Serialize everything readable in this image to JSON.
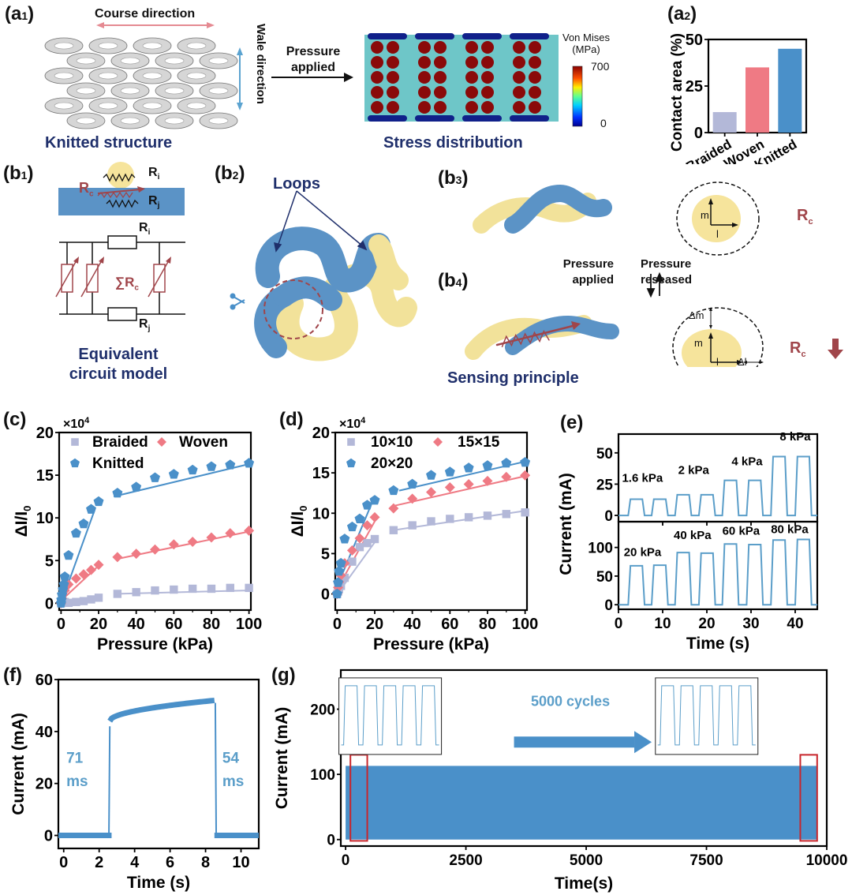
{
  "colors": {
    "navy": "#1f2f6b",
    "blue": "#4a90c9",
    "blue_dark": "#3a7fb8",
    "pink": "#ef7a84",
    "lavender": "#b3b8d8",
    "brick": "#a0454a",
    "yellow": "#f6e49c",
    "grey": "#c8c8c8",
    "red_box": "#c8262c"
  },
  "panel_a1": {
    "label_main": "(a",
    "label_sub": "1",
    "label_end": ")",
    "course_direction": "Course direction",
    "wale_direction": "Wale direction",
    "arrow_text_1": "Pressure",
    "arrow_text_2": "applied",
    "left_caption": "Knitted structure",
    "right_caption": "Stress distribution",
    "colorbar_title_1": "Von Mises",
    "colorbar_title_2": "(MPa)",
    "colorbar_max": "700",
    "colorbar_min": "0"
  },
  "panel_b1": {
    "label_main": "(b",
    "label_sub": "1",
    "label_end": ")",
    "rc": "R",
    "rc_sub": "c",
    "ri": "R",
    "ri_sub": "i",
    "rj": "R",
    "rj_sub": "j",
    "sum_rc": "∑R",
    "sum_rc_sub": "c",
    "caption_1": "Equivalent",
    "caption_2": "circuit model"
  },
  "panel_b2": {
    "label_main": "(b",
    "label_sub": "2",
    "label_end": ")",
    "loops": "Loops",
    "scissors_icon": "scissors-icon"
  },
  "panel_b3": {
    "label_main": "(b",
    "label_sub": "3",
    "label_end": ")",
    "m": "m",
    "l": "l",
    "rc": "R",
    "rc_sub": "c"
  },
  "panel_b4": {
    "label_main": "(b",
    "label_sub": "4",
    "label_end": ")",
    "pressure_applied_1": "Pressure",
    "pressure_applied_2": "applied",
    "pressure_released_1": "Pressure",
    "pressure_released_2": "reseased",
    "dm": "Δm",
    "m": "m",
    "l": "l",
    "dl": "Δl",
    "rc": "R",
    "rc_sub": "c",
    "caption": "Sensing principle"
  },
  "chart_data": [
    {
      "id": "a2",
      "panel_label": "(a",
      "panel_sub": "2",
      "panel_end": ")",
      "type": "bar",
      "categories": [
        "Braided",
        "Woven",
        "Knitted"
      ],
      "values": [
        11,
        35,
        45
      ],
      "colors": [
        "#b3b8d8",
        "#ef7a84",
        "#4a90c9"
      ],
      "ylabel": "Contact area (%)",
      "ylim": [
        0,
        50
      ],
      "yticks": [
        "0",
        "25",
        "50"
      ]
    },
    {
      "id": "c",
      "panel_label": "(c)",
      "type": "scatter",
      "multiplier": "×10",
      "multiplier_exp": "4",
      "xlabel": "Pressure (kPa)",
      "ylabel": "ΔI/I",
      "ylabel_sub": "0",
      "xlim": [
        -1,
        101
      ],
      "ylim": [
        -0.8,
        20
      ],
      "xticks": [
        "0",
        "20",
        "40",
        "60",
        "80",
        "100"
      ],
      "yticks": [
        "0",
        "5",
        "10",
        "15",
        "20"
      ],
      "legend": [
        "Braided",
        "Woven",
        "Knitted"
      ],
      "series": [
        {
          "name": "Braided",
          "marker": "square",
          "color": "#b3b8d8",
          "x": [
            0,
            0.5,
            1,
            2,
            4,
            8,
            12,
            16,
            20,
            30,
            40,
            50,
            60,
            70,
            80,
            90,
            100
          ],
          "y": [
            0,
            0.05,
            0.1,
            0.15,
            0.05,
            0.15,
            0.25,
            0.45,
            0.65,
            1.1,
            1.3,
            1.5,
            1.6,
            1.7,
            1.7,
            1.8,
            1.8
          ],
          "fit": [
            [
              [
                0,
                0
              ],
              [
                20,
                0.6
              ]
            ],
            [
              [
                28,
                1.1
              ],
              [
                100,
                1.5
              ]
            ]
          ]
        },
        {
          "name": "Woven",
          "marker": "diamond",
          "color": "#ef7a84",
          "x": [
            0,
            0.5,
            1,
            2,
            4,
            8,
            12,
            16,
            20,
            30,
            40,
            50,
            60,
            70,
            80,
            90,
            100
          ],
          "y": [
            0,
            0.6,
            1.0,
            1.5,
            2.2,
            2.9,
            3.4,
            3.9,
            4.5,
            5.4,
            5.8,
            6.3,
            6.9,
            7.2,
            7.7,
            8.2,
            8.5
          ],
          "fit": [
            [
              [
                0,
                0.3
              ],
              [
                20,
                4.4
              ]
            ],
            [
              [
                30,
                5.2
              ],
              [
                100,
                8.4
              ]
            ]
          ]
        },
        {
          "name": "Knitted",
          "marker": "pentagon",
          "color": "#4a90c9",
          "x": [
            0,
            0.2,
            0.5,
            1,
            1.5,
            2,
            4,
            8,
            12,
            16,
            20,
            30,
            40,
            50,
            60,
            70,
            80,
            90,
            100
          ],
          "y": [
            0,
            0.4,
            1.0,
            1.6,
            2.2,
            3.1,
            5.6,
            8.2,
            9.3,
            11.0,
            11.9,
            12.9,
            13.6,
            14.7,
            15.1,
            15.6,
            16.0,
            16.2,
            16.4
          ],
          "fit": [
            [
              [
                0,
                0
              ],
              [
                18,
                11.0
              ]
            ],
            [
              [
                28,
                12.5
              ],
              [
                100,
                16.3
              ]
            ]
          ]
        }
      ]
    },
    {
      "id": "d",
      "panel_label": "(d)",
      "type": "scatter",
      "multiplier": "×10",
      "multiplier_exp": "4",
      "xlabel": "Pressure (kPa)",
      "ylabel": "ΔI/I",
      "ylabel_sub": "0",
      "xlim": [
        -1,
        101
      ],
      "ylim": [
        -2,
        20
      ],
      "xticks": [
        "0",
        "20",
        "40",
        "60",
        "80",
        "100"
      ],
      "yticks": [
        "0",
        "5",
        "10",
        "15",
        "20"
      ],
      "legend": [
        "10×10",
        "15×15",
        "20×20"
      ],
      "series": [
        {
          "name": "10×10",
          "marker": "square",
          "color": "#b3b8d8",
          "x": [
            0,
            0.5,
            1,
            2,
            4,
            8,
            12,
            16,
            20,
            30,
            40,
            50,
            60,
            70,
            80,
            90,
            100
          ],
          "y": [
            0,
            0.3,
            0.6,
            1.0,
            2.0,
            4.0,
            5.8,
            6.3,
            6.8,
            7.9,
            8.5,
            9.0,
            9.3,
            9.5,
            9.7,
            9.9,
            10.1
          ],
          "fit": [
            [
              [
                2,
                0.6
              ],
              [
                20,
                6.4
              ]
            ],
            [
              [
                30,
                7.9
              ],
              [
                100,
                10.3
              ]
            ]
          ]
        },
        {
          "name": "15×15",
          "marker": "diamond",
          "color": "#ef7a84",
          "x": [
            0,
            0.5,
            1,
            2,
            4,
            8,
            12,
            16,
            20,
            30,
            40,
            50,
            60,
            70,
            80,
            90,
            100
          ],
          "y": [
            0,
            0.8,
            1.5,
            2.3,
            3.8,
            5.4,
            6.9,
            8.5,
            9.5,
            10.6,
            11.8,
            12.6,
            13.2,
            13.6,
            14.0,
            14.5,
            14.7
          ],
          "fit": [
            [
              [
                1,
                1.0
              ],
              [
                20,
                9.0
              ]
            ],
            [
              [
                30,
                10.9
              ],
              [
                100,
                14.6
              ]
            ]
          ]
        },
        {
          "name": "20×20",
          "marker": "pentagon",
          "color": "#4a90c9",
          "x": [
            0,
            0.5,
            1,
            2,
            4,
            8,
            12,
            16,
            20,
            30,
            40,
            50,
            60,
            70,
            80,
            90,
            100
          ],
          "y": [
            0,
            1.4,
            2.8,
            3.8,
            6.8,
            8.3,
            9.3,
            11.0,
            11.6,
            12.8,
            13.6,
            14.7,
            15.1,
            15.6,
            15.9,
            16.2,
            16.3
          ],
          "fit": [
            [
              [
                1,
                1.5
              ],
              [
                18,
                11.0
              ]
            ],
            [
              [
                33,
                12.8
              ],
              [
                100,
                16.4
              ]
            ]
          ]
        }
      ]
    },
    {
      "id": "e",
      "panel_label": "(e)",
      "type": "line",
      "xlabel": "Time (s)",
      "ylabel": "Current (mA)",
      "xlim": [
        0,
        45
      ],
      "xticks": [
        "0",
        "10",
        "20",
        "30",
        "40"
      ],
      "top": {
        "ylim": [
          -5,
          65
        ],
        "yticks": [
          "0",
          "25",
          "50"
        ],
        "levels": [
          13,
          13,
          16.5,
          16.5,
          28,
          28,
          47,
          47
        ],
        "annotations": [
          "1.6 kPa",
          "2 kPa",
          "4 kPa",
          "8 kPa"
        ]
      },
      "bottom": {
        "ylim": [
          -8,
          145
        ],
        "yticks": [
          "0",
          "50",
          "100"
        ],
        "levels": [
          68,
          69,
          91,
          90,
          106,
          105,
          113,
          114
        ],
        "annotations": [
          "20 kPa",
          "40 kPa",
          "60 kPa",
          "80 kPa"
        ]
      },
      "pulse_starts": [
        2.2,
        7.5,
        12.8,
        18.2,
        23.5,
        29.0,
        34.5,
        40.0
      ],
      "pulse_width": 3.2,
      "color": "#5b9ec9"
    },
    {
      "id": "f",
      "panel_label": "(f)",
      "type": "line",
      "xlabel": "Time (s)",
      "ylabel": "Current (mA)",
      "xlim": [
        -0.3,
        11
      ],
      "ylim": [
        -5,
        60
      ],
      "xticks": [
        "0",
        "2",
        "4",
        "6",
        "8",
        "10"
      ],
      "yticks": [
        "0",
        "20",
        "40",
        "60"
      ],
      "rise_time_s": 2.6,
      "fall_time_s": 8.55,
      "plateau_start_mA": 44,
      "plateau_end_mA": 52,
      "annotation_rise_1": "71",
      "annotation_rise_2": "ms",
      "annotation_fall_1": "54",
      "annotation_fall_2": "ms",
      "color": "#4a90c9",
      "annot_color": "#5b9ec9"
    },
    {
      "id": "g",
      "panel_label": "(g)",
      "type": "area",
      "xlabel": "Time(s)",
      "ylabel": "Current (mA)",
      "xlim": [
        -100,
        10000
      ],
      "ylim": [
        -10,
        260
      ],
      "xticks": [
        "0",
        "2500",
        "5000",
        "7500",
        "10000"
      ],
      "yticks": [
        "0",
        "100",
        "200"
      ],
      "signal_min_mA": 0,
      "signal_max_mA": 113,
      "signal_x_range": [
        0,
        9800
      ],
      "annotation": "5000 cycles",
      "highlight_ranges": [
        [
          100,
          450
        ],
        [
          9450,
          9800
        ]
      ],
      "color": "#4a90c9"
    }
  ]
}
